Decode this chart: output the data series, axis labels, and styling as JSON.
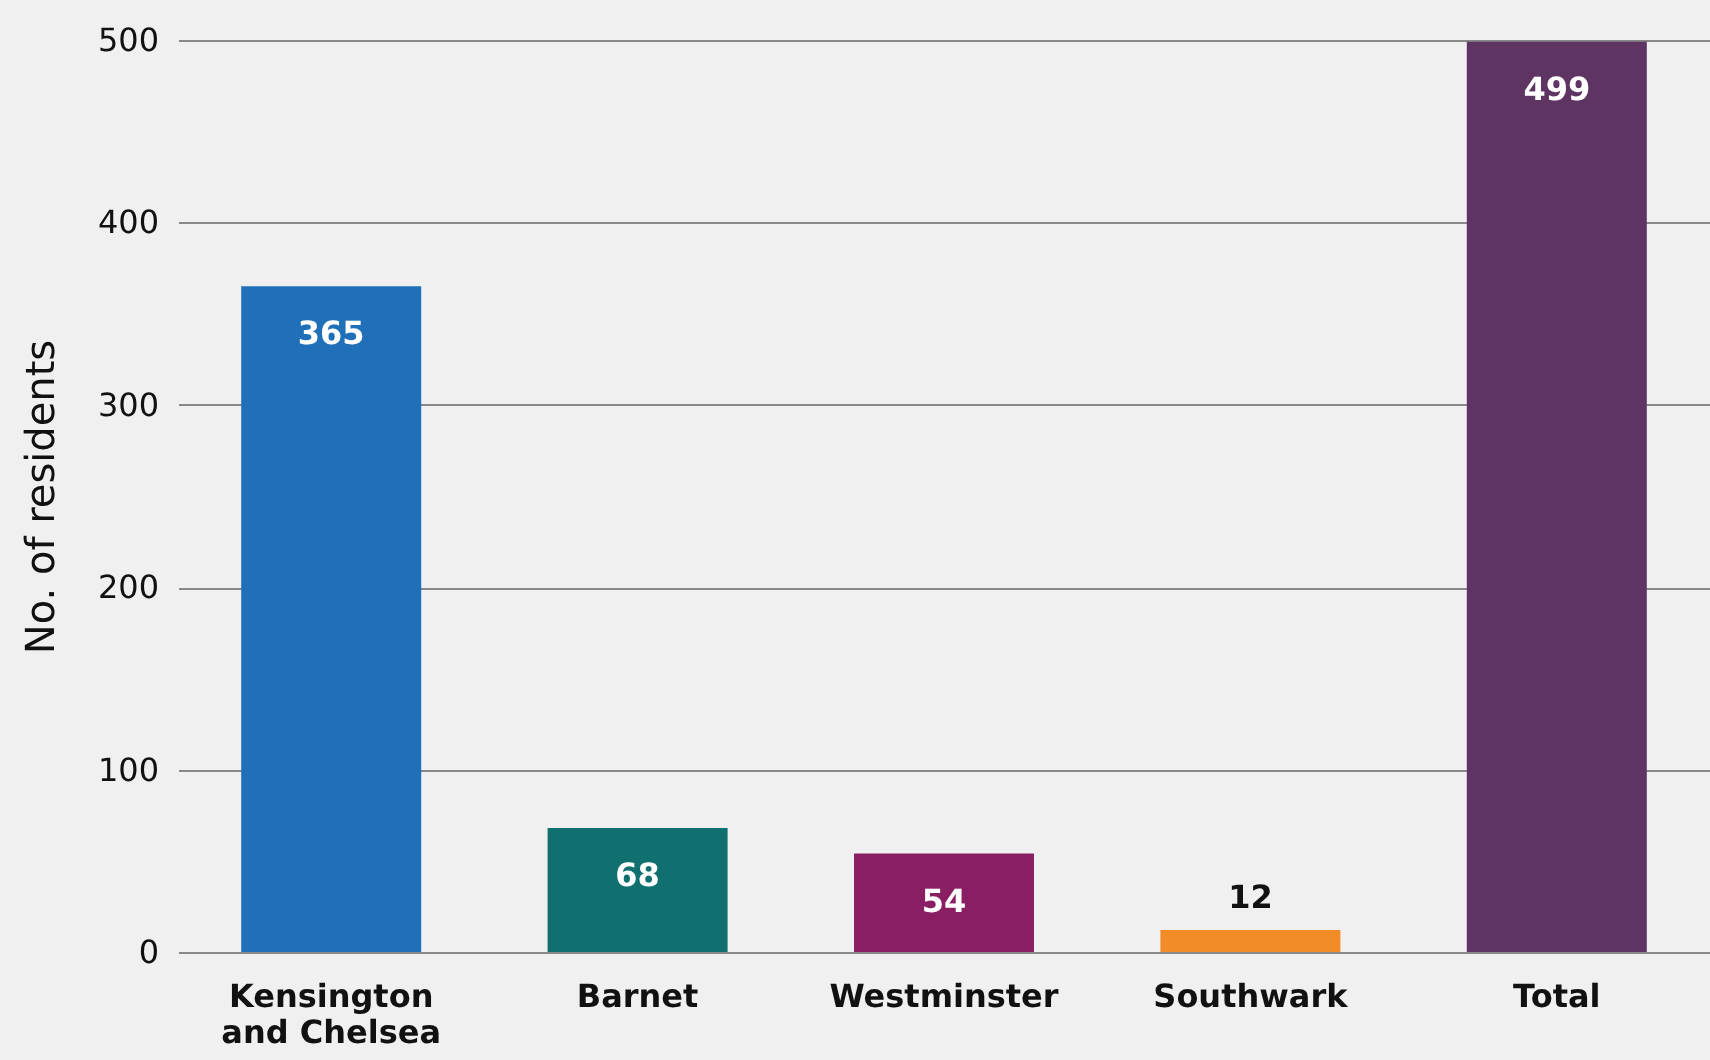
{
  "chart_data": {
    "type": "bar",
    "categories": [
      "Kensington and Chelsea",
      "Barnet",
      "Westminster",
      "Southwark",
      "Total"
    ],
    "values": [
      365,
      68,
      54,
      12,
      499
    ],
    "colors": [
      "#1f70b8",
      "#10706f",
      "#8a1e63",
      "#f28c28",
      "#5e3462"
    ],
    "ylabel": "No. of residents",
    "ylim": [
      0,
      500
    ],
    "yticks": [
      0,
      100,
      200,
      300,
      400,
      500
    ],
    "grid": "y",
    "data_labels": true
  }
}
